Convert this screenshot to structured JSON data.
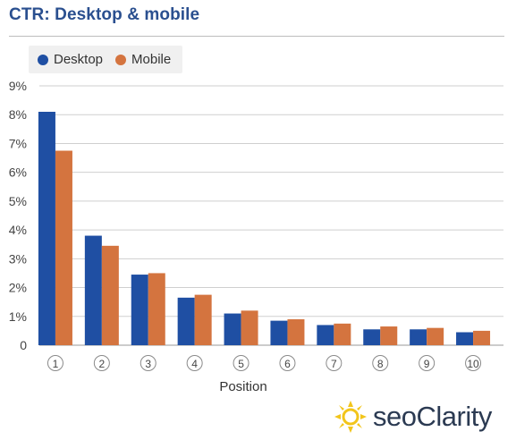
{
  "title": "CTR: Desktop & mobile",
  "legend": {
    "desktop_label": "Desktop",
    "mobile_label": "Mobile"
  },
  "colors": {
    "desktop": "#1f4fa3",
    "mobile": "#d4743f",
    "title": "#2a4f8f",
    "grid": "#cfcfcf"
  },
  "logo": {
    "text": "seoClarity",
    "icon": "sun-icon"
  },
  "chart_data": {
    "type": "bar",
    "xlabel": "Position",
    "ylabel": "",
    "ylim": [
      0,
      9
    ],
    "y_ticks": [
      "0",
      "1%",
      "2%",
      "3%",
      "4%",
      "5%",
      "6%",
      "7%",
      "8%",
      "9%"
    ],
    "categories": [
      "1",
      "2",
      "3",
      "4",
      "5",
      "6",
      "7",
      "8",
      "9",
      "10"
    ],
    "grid": true,
    "legend_position": "top-left",
    "series": [
      {
        "name": "Desktop",
        "values": [
          8.1,
          3.8,
          2.45,
          1.65,
          1.1,
          0.85,
          0.7,
          0.55,
          0.55,
          0.45
        ]
      },
      {
        "name": "Mobile",
        "values": [
          6.75,
          3.45,
          2.5,
          1.75,
          1.2,
          0.9,
          0.75,
          0.65,
          0.6,
          0.5
        ]
      }
    ]
  }
}
